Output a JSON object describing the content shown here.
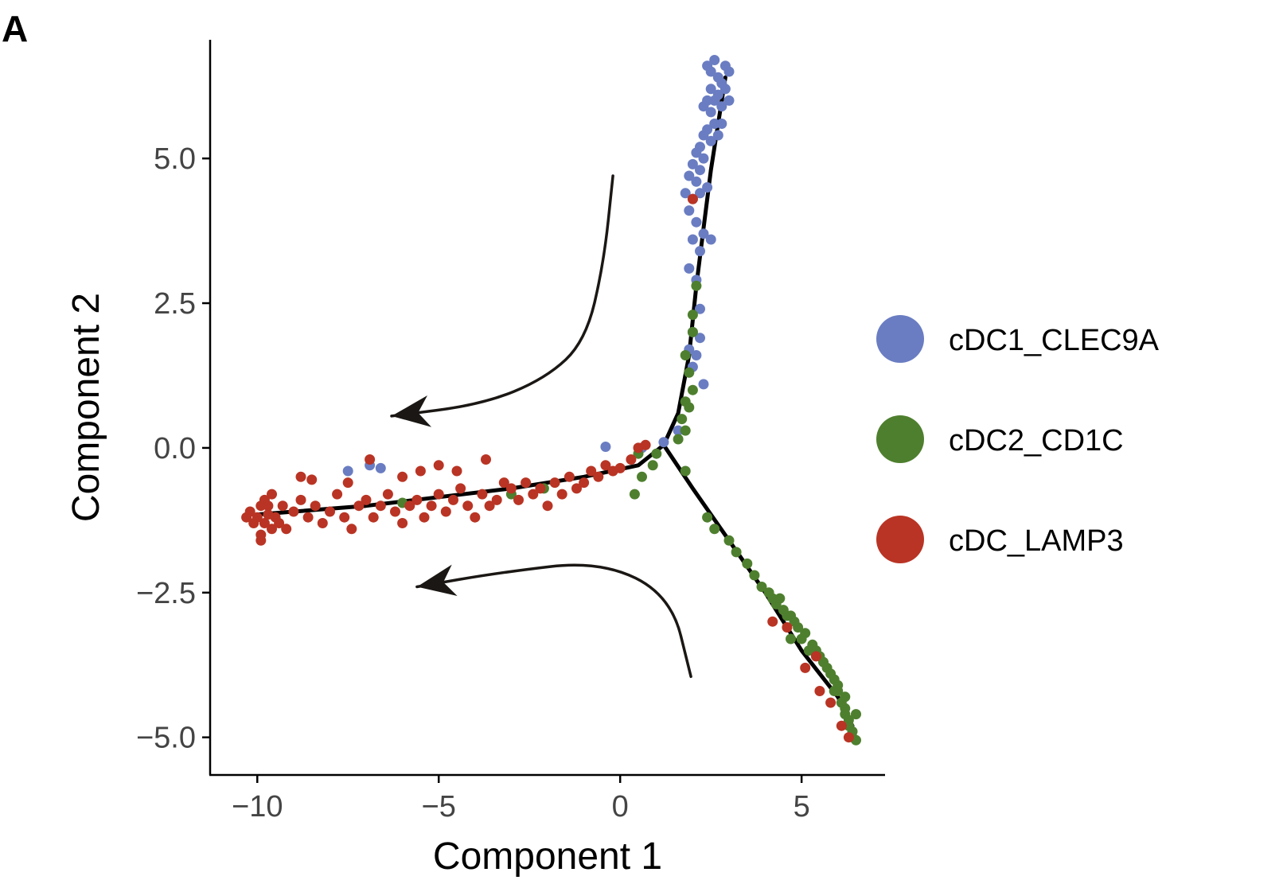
{
  "panel_label": "A",
  "chart_data": {
    "type": "scatter",
    "title": "",
    "xlabel": "Component 1",
    "ylabel": "Component 2",
    "xlim": [
      -11.3,
      7.3
    ],
    "ylim": [
      -5.65,
      7.05
    ],
    "x_ticks": [
      -10,
      -5,
      0,
      5
    ],
    "x_tick_labels": [
      "−10",
      "−5",
      "0",
      "5"
    ],
    "y_ticks": [
      5.0,
      2.5,
      0.0,
      -2.5,
      -5.0
    ],
    "y_tick_labels": [
      "5.0",
      "2.5",
      "0.0",
      "−2.5",
      "−5.0"
    ],
    "grid": false,
    "legend_position": "right",
    "series": [
      {
        "name": "cDC1_CLEC9A",
        "color": "#6a7dc2",
        "points": [
          [
            2.4,
            6.6
          ],
          [
            2.5,
            6.5
          ],
          [
            2.6,
            6.7
          ],
          [
            2.7,
            6.4
          ],
          [
            2.8,
            6.3
          ],
          [
            2.9,
            6.6
          ],
          [
            3.0,
            6.5
          ],
          [
            2.5,
            6.2
          ],
          [
            2.6,
            6.0
          ],
          [
            2.7,
            6.1
          ],
          [
            2.8,
            5.9
          ],
          [
            2.9,
            6.2
          ],
          [
            3.0,
            6.0
          ],
          [
            2.4,
            6.0
          ],
          [
            2.3,
            5.9
          ],
          [
            2.5,
            5.8
          ],
          [
            2.6,
            5.6
          ],
          [
            2.8,
            5.6
          ],
          [
            2.4,
            5.5
          ],
          [
            2.3,
            5.4
          ],
          [
            2.7,
            5.4
          ],
          [
            2.2,
            5.2
          ],
          [
            2.5,
            5.3
          ],
          [
            2.1,
            5.1
          ],
          [
            2.3,
            5.0
          ],
          [
            2.0,
            4.9
          ],
          [
            2.2,
            4.8
          ],
          [
            1.9,
            4.7
          ],
          [
            2.1,
            4.6
          ],
          [
            2.4,
            4.5
          ],
          [
            1.8,
            4.4
          ],
          [
            2.0,
            4.3
          ],
          [
            2.2,
            4.4
          ],
          [
            1.9,
            4.1
          ],
          [
            2.1,
            3.9
          ],
          [
            2.0,
            3.6
          ],
          [
            2.3,
            3.7
          ],
          [
            2.5,
            3.6
          ],
          [
            2.2,
            3.4
          ],
          [
            1.9,
            3.1
          ],
          [
            2.1,
            2.9
          ],
          [
            2.2,
            2.4
          ],
          [
            2.0,
            2.0
          ],
          [
            2.2,
            1.9
          ],
          [
            1.9,
            1.7
          ],
          [
            2.1,
            1.6
          ],
          [
            2.0,
            1.4
          ],
          [
            2.3,
            1.1
          ],
          [
            1.6,
            0.3
          ],
          [
            1.2,
            0.1
          ],
          [
            0.6,
            0.0
          ],
          [
            -0.4,
            0.02
          ],
          [
            -6.9,
            -0.3
          ],
          [
            -7.5,
            -0.4
          ],
          [
            -6.6,
            -0.35
          ]
        ]
      },
      {
        "name": "cDC2_CD1C",
        "color": "#4e7f2e",
        "points": [
          [
            2.1,
            2.8
          ],
          [
            2.0,
            2.3
          ],
          [
            2.0,
            2.0
          ],
          [
            1.8,
            1.6
          ],
          [
            1.9,
            1.3
          ],
          [
            2.0,
            1.0
          ],
          [
            1.8,
            0.8
          ],
          [
            1.9,
            0.7
          ],
          [
            1.7,
            0.5
          ],
          [
            1.8,
            0.3
          ],
          [
            1.6,
            0.15
          ],
          [
            1.0,
            -0.1
          ],
          [
            0.5,
            -0.1
          ],
          [
            0.9,
            -0.3
          ],
          [
            0.6,
            -0.5
          ],
          [
            1.8,
            -0.4
          ],
          [
            0.4,
            -0.8
          ],
          [
            -3.0,
            -0.8
          ],
          [
            -2.1,
            -0.7
          ],
          [
            -6.0,
            -0.95
          ],
          [
            2.4,
            -1.2
          ],
          [
            2.6,
            -1.4
          ],
          [
            3.0,
            -1.6
          ],
          [
            3.2,
            -1.8
          ],
          [
            3.5,
            -2.0
          ],
          [
            3.7,
            -2.2
          ],
          [
            3.9,
            -2.4
          ],
          [
            4.1,
            -2.5
          ],
          [
            4.3,
            -2.7
          ],
          [
            4.5,
            -2.8
          ],
          [
            4.7,
            -2.9
          ],
          [
            4.9,
            -3.1
          ],
          [
            5.1,
            -3.2
          ],
          [
            5.3,
            -3.4
          ],
          [
            5.5,
            -3.6
          ],
          [
            5.6,
            -3.7
          ],
          [
            5.8,
            -3.9
          ],
          [
            5.9,
            -4.0
          ],
          [
            6.0,
            -4.2
          ],
          [
            6.1,
            -4.4
          ],
          [
            6.2,
            -4.6
          ],
          [
            6.3,
            -4.8
          ],
          [
            6.4,
            -5.0
          ],
          [
            6.5,
            -5.05
          ],
          [
            6.3,
            -4.7
          ],
          [
            6.2,
            -4.5
          ],
          [
            5.9,
            -4.2
          ],
          [
            5.7,
            -3.8
          ],
          [
            5.4,
            -3.5
          ],
          [
            5.0,
            -3.3
          ],
          [
            4.8,
            -3.0
          ],
          [
            4.6,
            -2.9
          ],
          [
            4.4,
            -2.6
          ],
          [
            6.4,
            -4.9
          ],
          [
            6.5,
            -4.6
          ],
          [
            6.2,
            -4.3
          ],
          [
            6.0,
            -4.1
          ],
          [
            5.2,
            -3.5
          ],
          [
            4.7,
            -3.3
          ],
          [
            4.2,
            -2.6
          ]
        ]
      },
      {
        "name": "cDC_LAMP3",
        "color": "#b93424",
        "points": [
          [
            -10.2,
            -1.1
          ],
          [
            -10.0,
            -1.2
          ],
          [
            -9.9,
            -1.0
          ],
          [
            -9.8,
            -1.3
          ],
          [
            -9.7,
            -1.15
          ],
          [
            -9.6,
            -1.4
          ],
          [
            -10.1,
            -1.3
          ],
          [
            -9.9,
            -1.5
          ],
          [
            -9.8,
            -0.9
          ],
          [
            -9.7,
            -1.0
          ],
          [
            -9.5,
            -1.2
          ],
          [
            -10.3,
            -1.2
          ],
          [
            -9.9,
            -1.6
          ],
          [
            -9.6,
            -0.8
          ],
          [
            -9.4,
            -1.3
          ],
          [
            -9.3,
            -1.0
          ],
          [
            -9.2,
            -1.4
          ],
          [
            -9.0,
            -1.1
          ],
          [
            -8.8,
            -0.9
          ],
          [
            -8.6,
            -1.2
          ],
          [
            -8.4,
            -1.0
          ],
          [
            -8.2,
            -1.3
          ],
          [
            -8.0,
            -1.1
          ],
          [
            -7.8,
            -0.8
          ],
          [
            -7.6,
            -1.2
          ],
          [
            -7.4,
            -1.4
          ],
          [
            -7.2,
            -1.0
          ],
          [
            -7.0,
            -0.9
          ],
          [
            -6.8,
            -1.2
          ],
          [
            -6.6,
            -1.0
          ],
          [
            -6.4,
            -0.8
          ],
          [
            -6.2,
            -1.1
          ],
          [
            -6.0,
            -1.3
          ],
          [
            -5.8,
            -1.0
          ],
          [
            -5.6,
            -0.9
          ],
          [
            -5.4,
            -1.2
          ],
          [
            -5.2,
            -1.0
          ],
          [
            -5.0,
            -0.8
          ],
          [
            -4.8,
            -1.1
          ],
          [
            -4.6,
            -0.9
          ],
          [
            -4.4,
            -0.7
          ],
          [
            -4.2,
            -1.0
          ],
          [
            -4.0,
            -1.2
          ],
          [
            -3.8,
            -0.8
          ],
          [
            -3.6,
            -1.0
          ],
          [
            -3.4,
            -0.9
          ],
          [
            -3.2,
            -0.6
          ],
          [
            -3.0,
            -0.7
          ],
          [
            -2.8,
            -0.9
          ],
          [
            -2.6,
            -0.6
          ],
          [
            -2.4,
            -0.8
          ],
          [
            -2.2,
            -0.7
          ],
          [
            -2.0,
            -1.0
          ],
          [
            -1.8,
            -0.6
          ],
          [
            -1.6,
            -0.8
          ],
          [
            -1.4,
            -0.5
          ],
          [
            -1.2,
            -0.7
          ],
          [
            -1.0,
            -0.6
          ],
          [
            -0.8,
            -0.4
          ],
          [
            -0.6,
            -0.5
          ],
          [
            -0.4,
            -0.3
          ],
          [
            -0.2,
            -0.4
          ],
          [
            0.0,
            -0.35
          ],
          [
            0.3,
            -0.2
          ],
          [
            0.5,
            0.0
          ],
          [
            0.7,
            0.05
          ],
          [
            -5.5,
            -0.4
          ],
          [
            -5.0,
            -0.3
          ],
          [
            -4.5,
            -0.4
          ],
          [
            -6.9,
            -0.2
          ],
          [
            -6.0,
            -0.5
          ],
          [
            -3.7,
            -0.2
          ],
          [
            -8.8,
            -0.5
          ],
          [
            -8.5,
            -0.55
          ],
          [
            -7.5,
            -0.6
          ],
          [
            2.0,
            4.3
          ],
          [
            4.6,
            -3.1
          ],
          [
            4.2,
            -3.0
          ],
          [
            5.1,
            -3.8
          ],
          [
            5.5,
            -4.2
          ],
          [
            5.8,
            -4.4
          ],
          [
            6.1,
            -4.8
          ],
          [
            6.3,
            -5.0
          ],
          [
            5.4,
            -3.6
          ]
        ]
      }
    ],
    "trajectory": [
      [
        [
          1.2,
          0.05
        ],
        [
          1.6,
          0.6
        ],
        [
          1.9,
          1.6
        ],
        [
          2.1,
          2.8
        ],
        [
          2.3,
          3.8
        ],
        [
          2.5,
          4.8
        ],
        [
          2.7,
          5.6
        ],
        [
          2.9,
          6.4
        ]
      ],
      [
        [
          1.2,
          0.05
        ],
        [
          0.5,
          -0.3
        ],
        [
          -1.0,
          -0.5
        ],
        [
          -3.0,
          -0.7
        ],
        [
          -5.0,
          -0.85
        ],
        [
          -7.0,
          -1.0
        ],
        [
          -9.0,
          -1.1
        ],
        [
          -10.0,
          -1.15
        ]
      ],
      [
        [
          1.2,
          0.05
        ],
        [
          2.0,
          -0.7
        ],
        [
          3.0,
          -1.6
        ],
        [
          4.0,
          -2.5
        ],
        [
          5.0,
          -3.5
        ],
        [
          6.0,
          -4.3
        ],
        [
          6.4,
          -4.8
        ]
      ]
    ],
    "annotations": [
      {
        "type": "arrow",
        "path": [
          [
            -0.2,
            4.7
          ],
          [
            -0.45,
            3.2
          ],
          [
            -0.95,
            1.85
          ],
          [
            -2.05,
            1.2
          ],
          [
            -3.8,
            0.75
          ],
          [
            -6.3,
            0.55
          ]
        ]
      },
      {
        "type": "arrow",
        "path": [
          [
            1.95,
            -3.95
          ],
          [
            1.4,
            -2.55
          ],
          [
            -0.55,
            -1.95
          ],
          [
            -3.3,
            -2.15
          ],
          [
            -5.6,
            -2.4
          ]
        ]
      }
    ]
  }
}
